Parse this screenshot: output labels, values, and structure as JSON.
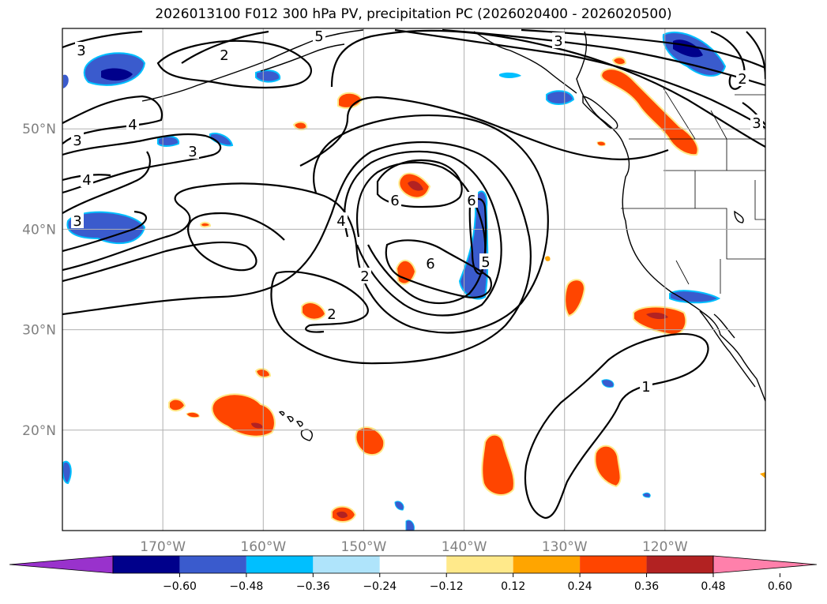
{
  "chart_data": {
    "type": "contour-map",
    "title": "2026013100 F012 300 hPa PV, precipitation PC (2026020400 - 2026020500)",
    "lon_range": [
      -180,
      -110
    ],
    "lat_range": [
      10,
      60
    ],
    "x_ticks": [
      {
        "lon": -170,
        "label": "170°W"
      },
      {
        "lon": -160,
        "label": "160°W"
      },
      {
        "lon": -150,
        "label": "150°W"
      },
      {
        "lon": -140,
        "label": "140°W"
      },
      {
        "lon": -130,
        "label": "130°W"
      },
      {
        "lon": -120,
        "label": "120°W"
      }
    ],
    "y_ticks": [
      {
        "lat": 50,
        "label": "50°N"
      },
      {
        "lat": 40,
        "label": "40°N"
      },
      {
        "lat": 30,
        "label": "30°N"
      },
      {
        "lat": 20,
        "label": "20°N"
      }
    ],
    "grid": true,
    "colorbar": {
      "levels": [
        -0.6,
        -0.48,
        -0.36,
        -0.24,
        -0.12,
        0.12,
        0.24,
        0.36,
        0.48,
        0.6
      ],
      "tick_labels": [
        "−0.60",
        "−0.48",
        "−0.36",
        "−0.24",
        "−0.12",
        "0.12",
        "0.24",
        "0.36",
        "0.48",
        "0.60"
      ],
      "colors": [
        "#9932cc",
        "#00008b",
        "#3a5bcd",
        "#00bfff",
        "#afe4fb",
        "#ffffff",
        "#ffe98a",
        "#ffa500",
        "#ff4500",
        "#b22222",
        "#ff80ab"
      ]
    },
    "pv_contour_labels": [
      "3",
      "2",
      "4",
      "3",
      "3",
      "4",
      "3",
      "5",
      "6",
      "6",
      "4",
      "6",
      "2",
      "5",
      "2",
      "3",
      "2",
      "3",
      "1"
    ],
    "colors": {
      "contour": "#000000",
      "coast": "#000000",
      "grid": "#b0b0b0",
      "tick": "#808080"
    }
  }
}
